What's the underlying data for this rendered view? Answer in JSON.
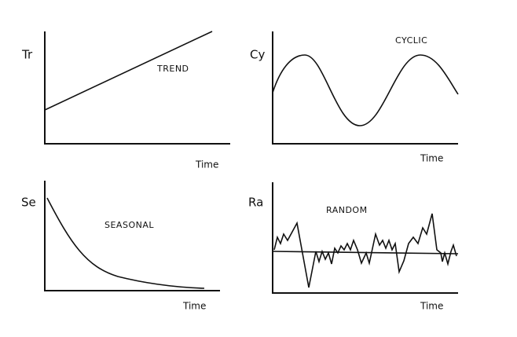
{
  "panels": [
    {
      "axis_label": "Tr",
      "name": "TREND",
      "x_label": "Time"
    },
    {
      "axis_label": "Cy",
      "name": "CYCLIC",
      "x_label": "Time"
    },
    {
      "axis_label": "Se",
      "name": "SEASONAL",
      "x_label": "Time"
    },
    {
      "axis_label": "Ra",
      "name": "RANDOM",
      "x_label": "Time"
    }
  ]
}
